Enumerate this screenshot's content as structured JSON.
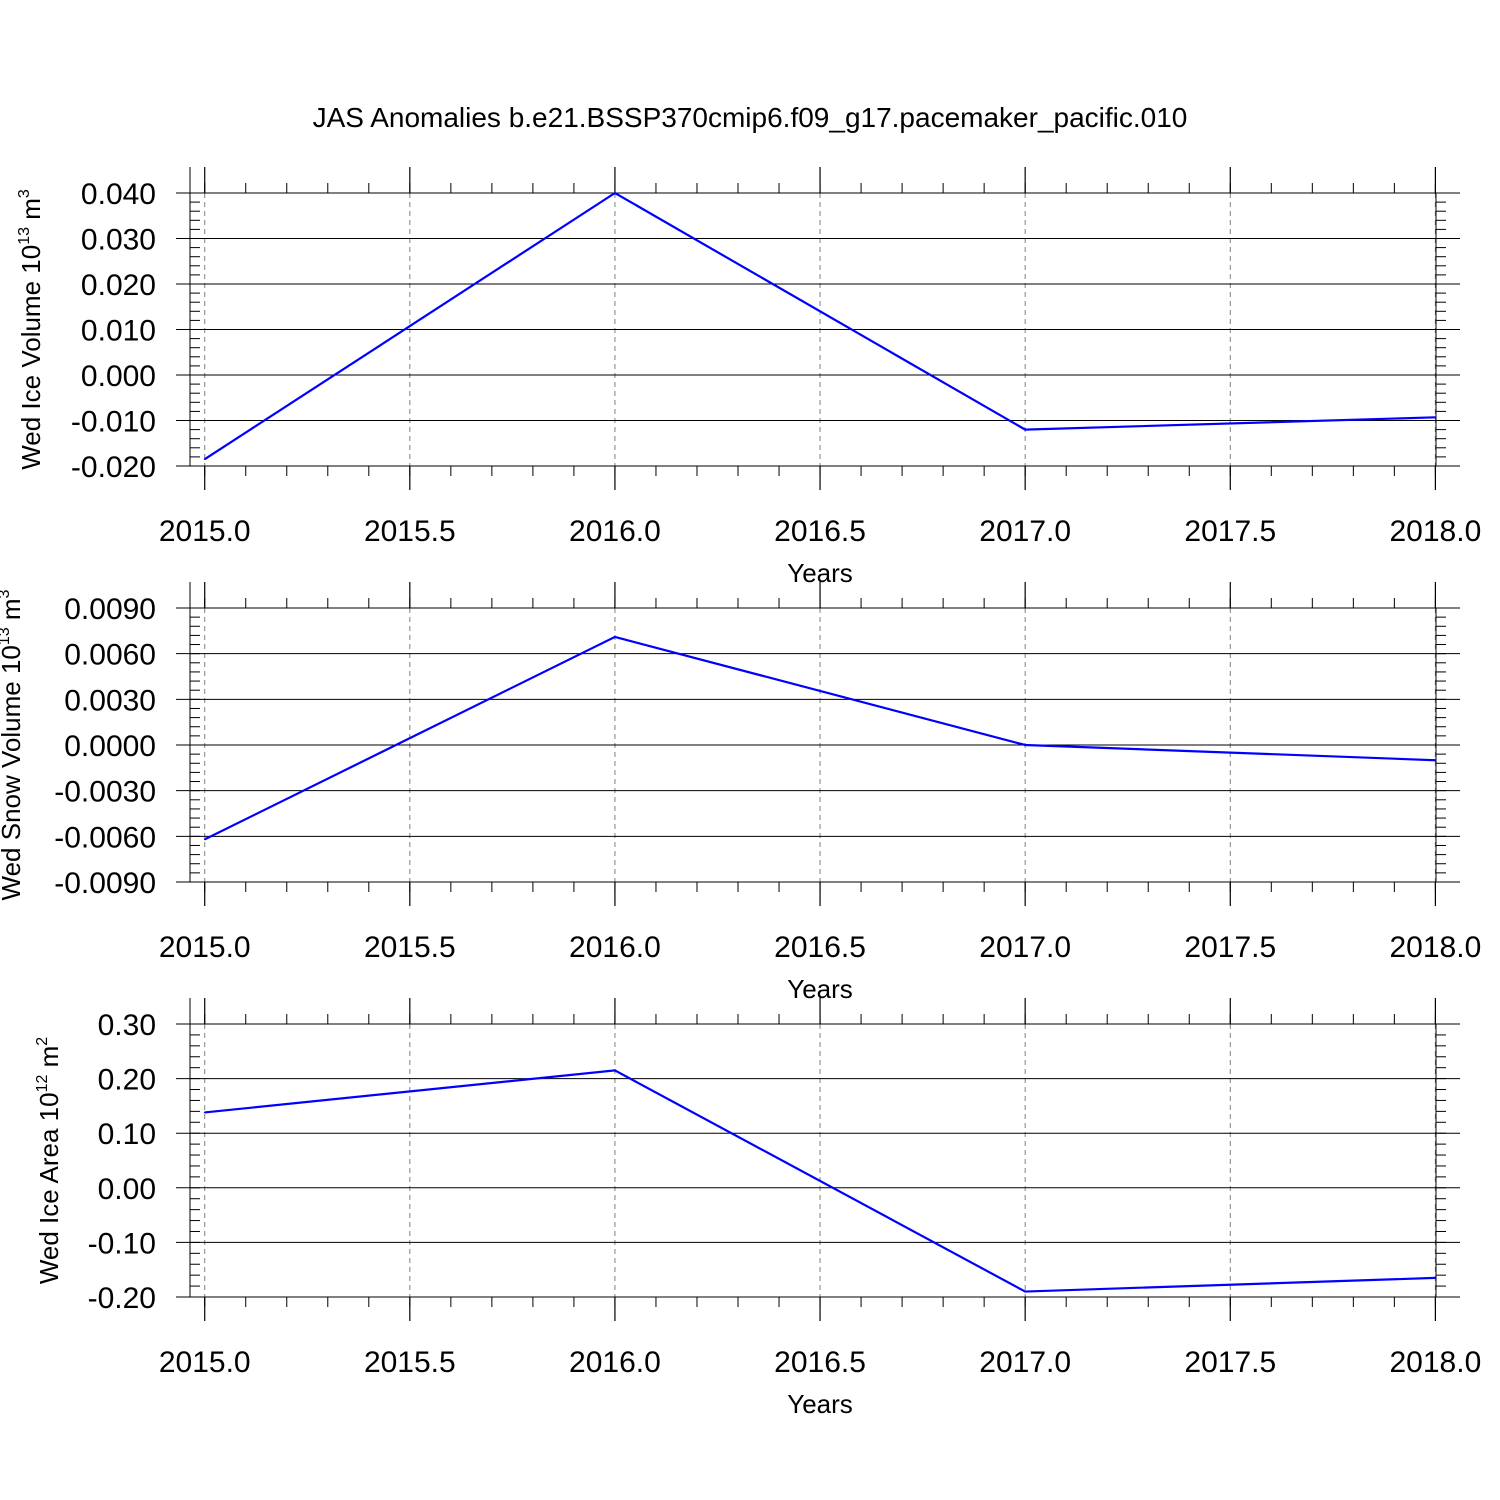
{
  "title": "JAS Anomalies b.e21.BSSP370cmip6.f09_g17.pacemaker_pacific.010",
  "chart_data": [
    {
      "type": "line",
      "name": "ice-volume",
      "ylabel": "Wed Ice Volume 10",
      "ylabel_exp": "13",
      "ylabel_unit": " m",
      "ylabel_unit_exp": "3",
      "xlabel": "Years",
      "x": [
        2015,
        2016,
        2017,
        2018
      ],
      "series": [
        {
          "values": [
            -0.0185,
            0.04,
            -0.012,
            -0.0093
          ],
          "color": "#0000ff"
        }
      ],
      "xlim": [
        2014.93,
        2018.06
      ],
      "ylim": [
        -0.02,
        0.04
      ],
      "yticks": [
        -0.02,
        -0.01,
        0.0,
        0.01,
        0.02,
        0.03,
        0.04
      ],
      "ytick_labels": [
        "-0.020",
        "-0.010",
        "0.000",
        "0.010",
        "0.020",
        "0.030",
        "0.040"
      ],
      "xticks": [
        2015.0,
        2015.5,
        2016.0,
        2016.5,
        2017.0,
        2017.5,
        2018.0
      ],
      "xtick_labels": [
        "2015.0",
        "2015.5",
        "2016.0",
        "2016.5",
        "2017.0",
        "2017.5",
        "2018.0"
      ],
      "grid": "vertical-dashed"
    },
    {
      "type": "line",
      "name": "snow-volume",
      "ylabel": "Wed Snow Volume 10",
      "ylabel_exp": "13",
      "ylabel_unit": " m",
      "ylabel_unit_exp": "3",
      "xlabel": "Years",
      "x": [
        2015,
        2016,
        2017,
        2018
      ],
      "series": [
        {
          "values": [
            -0.0062,
            0.0071,
            0.0,
            -0.001
          ],
          "color": "#0000ff"
        }
      ],
      "xlim": [
        2014.93,
        2018.06
      ],
      "ylim": [
        -0.009,
        0.009
      ],
      "yticks": [
        -0.009,
        -0.006,
        -0.003,
        0.0,
        0.003,
        0.006,
        0.009
      ],
      "ytick_labels": [
        "-0.0090",
        "-0.0060",
        "-0.0030",
        "0.0000",
        "0.0030",
        "0.0060",
        "0.0090"
      ],
      "xticks": [
        2015.0,
        2015.5,
        2016.0,
        2016.5,
        2017.0,
        2017.5,
        2018.0
      ],
      "xtick_labels": [
        "2015.0",
        "2015.5",
        "2016.0",
        "2016.5",
        "2017.0",
        "2017.5",
        "2018.0"
      ],
      "grid": "vertical-dashed"
    },
    {
      "type": "line",
      "name": "ice-area",
      "ylabel": "Wed Ice Area 10",
      "ylabel_exp": "12",
      "ylabel_unit": " m",
      "ylabel_unit_exp": "2",
      "xlabel": "Years",
      "x": [
        2015,
        2016,
        2017,
        2018
      ],
      "series": [
        {
          "values": [
            0.138,
            0.215,
            -0.19,
            -0.165
          ],
          "color": "#0000ff"
        }
      ],
      "xlim": [
        2014.93,
        2018.06
      ],
      "ylim": [
        -0.2,
        0.3
      ],
      "yticks": [
        -0.2,
        -0.1,
        0.0,
        0.1,
        0.2,
        0.3
      ],
      "ytick_labels": [
        "-0.20",
        "-0.10",
        "0.00",
        "0.10",
        "0.20",
        "0.30"
      ],
      "xticks": [
        2015.0,
        2015.5,
        2016.0,
        2016.5,
        2017.0,
        2017.5,
        2018.0
      ],
      "xtick_labels": [
        "2015.0",
        "2015.5",
        "2016.0",
        "2016.5",
        "2017.0",
        "2017.5",
        "2018.0"
      ],
      "grid": "vertical-dashed"
    }
  ]
}
